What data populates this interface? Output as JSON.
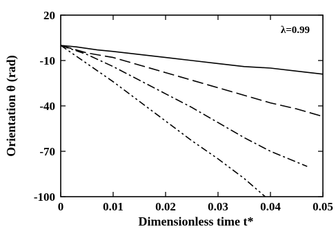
{
  "chart_data": {
    "type": "line",
    "xlabel": "Dimensionless time  t*",
    "ylabel": "Orientation  θ  (rad)",
    "annotation": "λ=0.99",
    "xlim": [
      0,
      0.05
    ],
    "ylim": [
      -100,
      20
    ],
    "x_ticks": [
      {
        "value": 0,
        "label": "0"
      },
      {
        "value": 0.01,
        "label": "0.01"
      },
      {
        "value": 0.02,
        "label": "0.02"
      },
      {
        "value": 0.03,
        "label": "0.03"
      },
      {
        "value": 0.04,
        "label": "0.04"
      },
      {
        "value": 0.05,
        "label": "0.05"
      }
    ],
    "y_ticks": [
      {
        "value": 20,
        "label": "20"
      },
      {
        "value": -10,
        "label": "-10"
      },
      {
        "value": -40,
        "label": "-40"
      },
      {
        "value": -70,
        "label": "-70"
      },
      {
        "value": -100,
        "label": "-100"
      }
    ],
    "grid": false,
    "series": [
      {
        "line_style": "solid",
        "x": [
          0,
          0.003,
          0.007,
          0.01,
          0.015,
          0.02,
          0.025,
          0.03,
          0.035,
          0.04,
          0.045,
          0.05
        ],
        "y": [
          0,
          -1,
          -3,
          -4,
          -6,
          -8,
          -10,
          -12,
          -14,
          -15,
          -17,
          -19
        ]
      },
      {
        "line_style": "long-dash",
        "x": [
          0,
          0.005,
          0.01,
          0.015,
          0.02,
          0.025,
          0.03,
          0.035,
          0.04,
          0.045,
          0.05
        ],
        "y": [
          0,
          -5,
          -8,
          -13,
          -18,
          -23,
          -28,
          -33,
          -38,
          -42,
          -47
        ]
      },
      {
        "line_style": "dash-dot",
        "x": [
          0,
          0.005,
          0.01,
          0.015,
          0.02,
          0.025,
          0.03,
          0.035,
          0.04,
          0.047
        ],
        "y": [
          0,
          -6,
          -14,
          -23,
          -32,
          -41,
          -51,
          -61,
          -70,
          -80
        ]
      },
      {
        "line_style": "dash-dot-dot",
        "x": [
          0,
          0.005,
          0.01,
          0.015,
          0.02,
          0.025,
          0.03,
          0.035,
          0.039
        ],
        "y": [
          0,
          -12,
          -24,
          -37,
          -50,
          -63,
          -75,
          -88,
          -100
        ]
      }
    ]
  }
}
